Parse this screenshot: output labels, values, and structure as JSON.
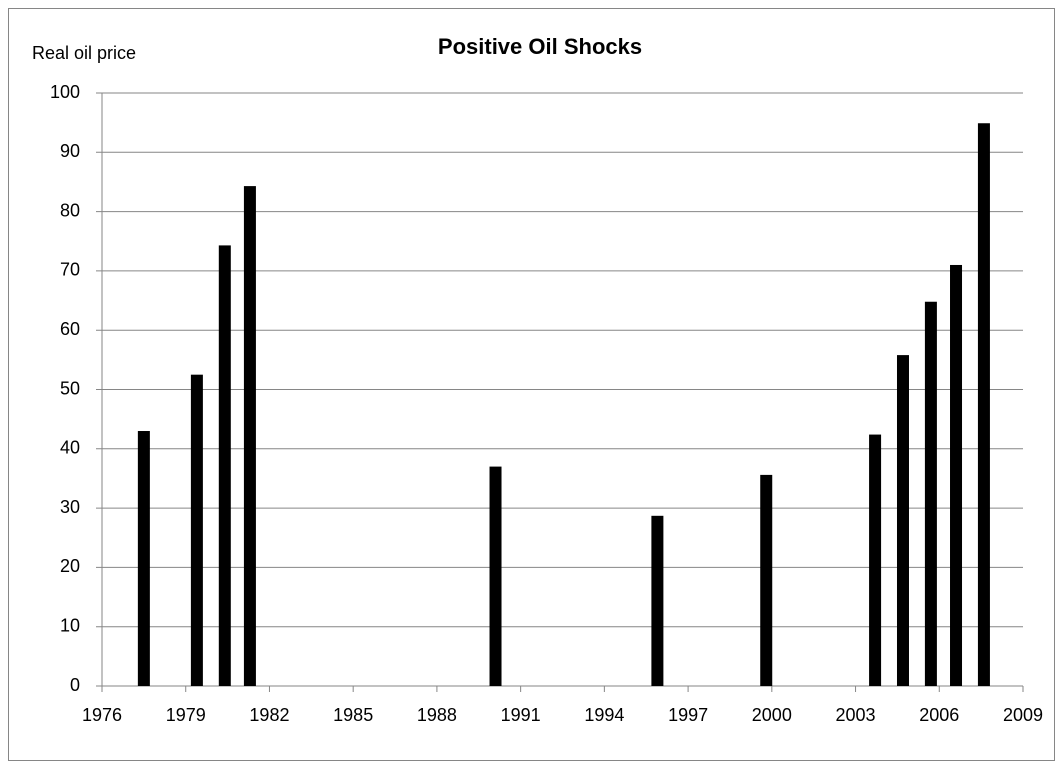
{
  "chart_data": {
    "type": "bar",
    "title": "Positive Oil Shocks",
    "y_label": "Real oil price",
    "x": [
      1977.5,
      1979.4,
      1980.4,
      1981.3,
      1990.1,
      1995.9,
      1999.8,
      2003.7,
      2004.7,
      2005.7,
      2006.6,
      2007.6
    ],
    "values": [
      43,
      52.5,
      74.3,
      84.3,
      37,
      28.7,
      35.6,
      42.4,
      55.8,
      64.8,
      71,
      94.9
    ],
    "color": "#000000",
    "xlim": [
      1976,
      2009
    ],
    "xticks": [
      1976,
      1979,
      1982,
      1985,
      1988,
      1991,
      1994,
      1997,
      2000,
      2003,
      2006,
      2009
    ],
    "ylim": [
      0,
      100
    ],
    "yticks": [
      0,
      10,
      20,
      30,
      40,
      50,
      60,
      70,
      80,
      90,
      100
    ],
    "grid": true
  }
}
